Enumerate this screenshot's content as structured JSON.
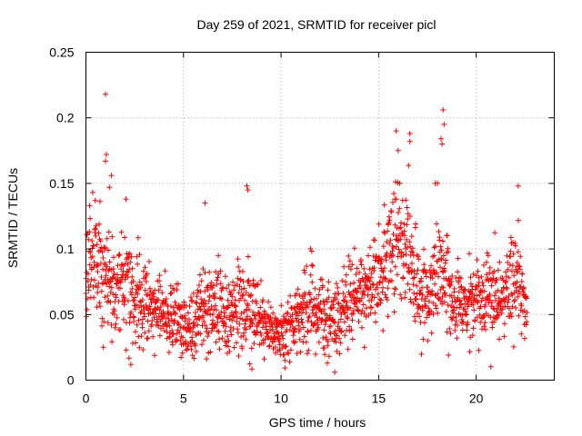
{
  "chart_data": {
    "type": "scatter",
    "title": "Day 259 of 2021, SRMTID for receiver picl",
    "xlabel": "GPS time / hours",
    "ylabel": "SRMTID / TECUs",
    "xlim": [
      0,
      24
    ],
    "ylim": [
      0,
      0.25
    ],
    "x_ticks": [
      0,
      5,
      10,
      15,
      20
    ],
    "x_tick_labels": [
      "0",
      "5",
      "10",
      "15",
      "20"
    ],
    "y_ticks": [
      0,
      0.05,
      0.1,
      0.15,
      0.2,
      0.25
    ],
    "y_tick_labels": [
      "0",
      "0.05",
      "0.1",
      "0.15",
      "0.2",
      "0.25"
    ],
    "grid": true,
    "marker": "+",
    "marker_color": "#ff0000",
    "series_color": "#ff0000",
    "trend": {
      "description": "approximate local mean (TECU) by GPS hour",
      "x": [
        0,
        0.5,
        1,
        1.5,
        2,
        2.5,
        3,
        3.5,
        4,
        4.5,
        5,
        5.5,
        6,
        6.5,
        7,
        7.5,
        8,
        8.5,
        9,
        9.5,
        10,
        10.5,
        11,
        11.5,
        12,
        12.5,
        13,
        13.5,
        14,
        14.5,
        15,
        15.5,
        16,
        16.5,
        17,
        17.5,
        18,
        18.5,
        19,
        19.5,
        20,
        20.5,
        21,
        21.5,
        22,
        22.5
      ],
      "y": [
        0.085,
        0.09,
        0.075,
        0.068,
        0.07,
        0.065,
        0.058,
        0.055,
        0.052,
        0.05,
        0.045,
        0.042,
        0.055,
        0.06,
        0.055,
        0.05,
        0.06,
        0.05,
        0.045,
        0.04,
        0.032,
        0.04,
        0.05,
        0.055,
        0.05,
        0.04,
        0.05,
        0.06,
        0.065,
        0.07,
        0.08,
        0.095,
        0.105,
        0.1,
        0.065,
        0.07,
        0.085,
        0.07,
        0.06,
        0.06,
        0.07,
        0.065,
        0.06,
        0.065,
        0.08,
        0.06
      ],
      "spread": [
        0.02,
        0.02,
        0.02,
        0.018,
        0.02,
        0.018,
        0.015,
        0.015,
        0.015,
        0.015,
        0.013,
        0.013,
        0.018,
        0.02,
        0.018,
        0.015,
        0.02,
        0.016,
        0.013,
        0.012,
        0.01,
        0.012,
        0.015,
        0.016,
        0.015,
        0.015,
        0.015,
        0.015,
        0.016,
        0.018,
        0.02,
        0.025,
        0.025,
        0.025,
        0.015,
        0.015,
        0.025,
        0.018,
        0.015,
        0.015,
        0.015,
        0.015,
        0.015,
        0.015,
        0.02,
        0.012
      ]
    },
    "x_max": 22.6,
    "samples": 1800,
    "outliers": [
      {
        "x": 1.0,
        "y": 0.218
      },
      {
        "x": 1.05,
        "y": 0.172
      },
      {
        "x": 1.0,
        "y": 0.167
      },
      {
        "x": 1.3,
        "y": 0.156
      },
      {
        "x": 1.2,
        "y": 0.147
      },
      {
        "x": 2.05,
        "y": 0.138
      },
      {
        "x": 6.1,
        "y": 0.135
      },
      {
        "x": 8.25,
        "y": 0.148
      },
      {
        "x": 8.3,
        "y": 0.145
      },
      {
        "x": 15.9,
        "y": 0.19
      },
      {
        "x": 16.0,
        "y": 0.175
      },
      {
        "x": 16.6,
        "y": 0.188
      },
      {
        "x": 16.6,
        "y": 0.182
      },
      {
        "x": 18.3,
        "y": 0.206
      },
      {
        "x": 18.35,
        "y": 0.195
      },
      {
        "x": 18.2,
        "y": 0.184
      },
      {
        "x": 18.25,
        "y": 0.18
      },
      {
        "x": 17.9,
        "y": 0.15
      },
      {
        "x": 22.15,
        "y": 0.148
      },
      {
        "x": 12.75,
        "y": 0.006
      },
      {
        "x": 2.3,
        "y": 0.012
      },
      {
        "x": 10.2,
        "y": 0.015
      }
    ]
  }
}
